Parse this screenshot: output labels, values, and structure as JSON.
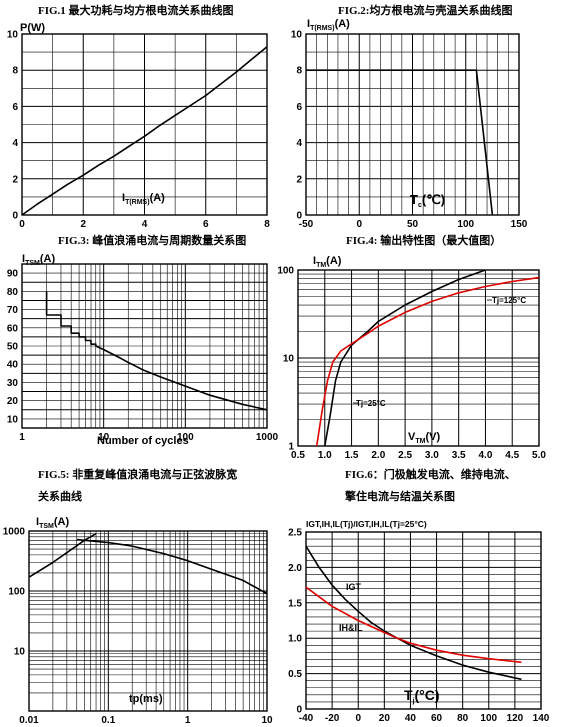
{
  "chart_data": [
    {
      "type": "line",
      "title": "FIG.1  最大功耗与均方根电流关系曲线图",
      "ylabel": "P(W)",
      "xlabel_main": "I",
      "xlabel_sub": "T(RMS)",
      "xlabel_unit": "(A)",
      "xlim": [
        0,
        8
      ],
      "ylim": [
        0,
        10
      ],
      "xticks": [
        "0",
        "2",
        "4",
        "6",
        "8"
      ],
      "yticks": [
        "0",
        "2",
        "4",
        "6",
        "8",
        "10"
      ],
      "grid": true,
      "series": [
        {
          "x": [
            0,
            0.5,
            1,
            1.5,
            2,
            2.5,
            3,
            3.5,
            4,
            4.5,
            5,
            5.5,
            6,
            6.5,
            7,
            7.5,
            8
          ],
          "y": [
            0,
            0.6,
            1.15,
            1.7,
            2.2,
            2.75,
            3.25,
            3.8,
            4.35,
            4.95,
            5.5,
            6.05,
            6.6,
            7.25,
            7.9,
            8.6,
            9.3
          ]
        }
      ]
    },
    {
      "type": "line",
      "title": "FIG.2:均方根电流与壳温关系曲线图",
      "ylabel_main": "I",
      "ylabel_sub": "T(RMS)",
      "ylabel_unit": "(A)",
      "xlabel_main": "T",
      "xlabel_sub": "c",
      "xlabel_unit": "(℃)",
      "xlim": [
        -50,
        150
      ],
      "ylim": [
        0,
        10
      ],
      "xticks": [
        "-50",
        "0",
        "50",
        "100",
        "150"
      ],
      "yticks": [
        "0",
        "2",
        "4",
        "6",
        "8",
        "10"
      ],
      "grid": true,
      "series": [
        {
          "x": [
            -50,
            110,
            125
          ],
          "y": [
            8,
            8,
            0
          ]
        }
      ]
    },
    {
      "type": "line",
      "title": "FIG.3:  峰值浪涌电流与周期数量关系图",
      "ylabel_main": "I",
      "ylabel_sub": "TSM",
      "ylabel_unit": "(A)",
      "xlabel": "Number of cycles",
      "xscale": "log",
      "xlim": [
        1,
        1000
      ],
      "ylim": [
        5,
        95
      ],
      "xticks": [
        "1",
        "10",
        "100",
        "1000"
      ],
      "yticks": [
        "10",
        "20",
        "30",
        "40",
        "50",
        "60",
        "70",
        "80",
        "90"
      ],
      "grid": true,
      "series": [
        {
          "x": [
            2,
            2,
            3,
            3,
            4,
            4,
            5,
            5,
            6,
            6,
            7,
            7,
            8,
            8,
            10,
            15,
            20,
            30,
            50,
            100,
            200,
            500,
            1000
          ],
          "y": [
            80,
            67,
            67,
            61,
            61,
            57,
            57,
            55,
            55,
            53,
            53,
            51,
            51,
            50,
            48,
            44,
            41,
            37,
            33,
            28,
            23,
            18,
            15
          ]
        }
      ]
    },
    {
      "type": "line",
      "title": "FIG.4:  输出特性图（最大值图）",
      "ylabel_main": "I",
      "ylabel_sub": "TM",
      "ylabel_unit": "(A)",
      "xlabel_main": "V",
      "xlabel_sub": "TM",
      "xlabel_unit": "(V)",
      "yscale": "log",
      "xlim": [
        0.5,
        5.0
      ],
      "ylim": [
        1,
        100
      ],
      "xticks": [
        "0.5",
        "1.0",
        "1.5",
        "2.0",
        "2.5",
        "3.0",
        "3.5",
        "4.0",
        "4.5",
        "5.0"
      ],
      "yticks": [
        "1",
        "10",
        "100"
      ],
      "grid": true,
      "series": [
        {
          "name": "Tj=25°C",
          "color": "#000000",
          "x": [
            1.0,
            1.1,
            1.2,
            1.3,
            1.5,
            1.8,
            2.0,
            2.5,
            3.0,
            3.5,
            4.0
          ],
          "y": [
            1,
            2.2,
            5.5,
            9,
            14,
            20,
            26,
            40,
            57,
            78,
            100
          ]
        },
        {
          "name": "Tj=125°C",
          "color": "#e00000",
          "x": [
            0.85,
            0.95,
            1.05,
            1.15,
            1.3,
            1.5,
            1.8,
            2.0,
            2.5,
            3.0,
            3.5,
            4.0,
            4.5,
            5.0
          ],
          "y": [
            1,
            2.5,
            5.5,
            9,
            12,
            14.5,
            19,
            23,
            33,
            44,
            55,
            65,
            74,
            82
          ]
        }
      ],
      "annotations": [
        {
          "text": "Tj=25°C",
          "series": 0
        },
        {
          "text": "Tj=125°C",
          "series": 1
        }
      ]
    },
    {
      "type": "line",
      "title_line1": "FIG.5:  非重复峰值浪涌电流与正弦波脉宽",
      "title_line2": "关系曲线",
      "ylabel_main": "I",
      "ylabel_sub": "TSM",
      "ylabel_unit": "(A)",
      "xlabel": "tp(ms)",
      "xscale": "log",
      "yscale": "log",
      "xlim": [
        0.01,
        10
      ],
      "ylim": [
        1,
        1000
      ],
      "xticks": [
        "0.01",
        "0.1",
        "1",
        "10"
      ],
      "yticks": [
        "10",
        "100",
        "1000"
      ],
      "grid": true,
      "series": [
        {
          "x": [
            0.01,
            0.02,
            0.05,
            0.07
          ],
          "y": [
            170,
            300,
            700,
            900
          ]
        },
        {
          "x": [
            0.04,
            0.1,
            0.2,
            0.5,
            1,
            2,
            5,
            10
          ],
          "y": [
            720,
            640,
            560,
            420,
            320,
            230,
            150,
            90
          ]
        }
      ]
    },
    {
      "type": "line",
      "title_line1": "FIG.6：门极触发电流、维持电流、",
      "title_line2": "擎住电流与结温关系图",
      "ylabel": "IGT,IH,IL(Tj)/IGT,IH,IL(Tj=25°C)",
      "xlabel_main": "T",
      "xlabel_sub": "j",
      "xlabel_unit": "(°C)",
      "xlim": [
        -40,
        140
      ],
      "ylim": [
        0,
        2.5
      ],
      "xticks": [
        "-40",
        "-20",
        "0",
        "20",
        "40",
        "60",
        "80",
        "100",
        "120",
        "140"
      ],
      "yticks": [
        "0",
        "0.5",
        "1.0",
        "1.5",
        "2.0",
        "2.5"
      ],
      "grid": true,
      "series": [
        {
          "name": "IGT",
          "color": "#000000",
          "x": [
            -40,
            -30,
            -20,
            -10,
            0,
            10,
            20,
            30,
            40,
            60,
            80,
            100,
            125
          ],
          "y": [
            2.3,
            2.0,
            1.75,
            1.55,
            1.38,
            1.22,
            1.1,
            1.0,
            0.9,
            0.75,
            0.62,
            0.52,
            0.42
          ]
        },
        {
          "name": "IH&IL",
          "color": "#e00000",
          "x": [
            -40,
            -20,
            0,
            20,
            30,
            40,
            60,
            80,
            100,
            125
          ],
          "y": [
            1.72,
            1.45,
            1.25,
            1.08,
            1.0,
            0.93,
            0.83,
            0.76,
            0.71,
            0.66
          ]
        }
      ],
      "annotations": [
        {
          "text": "IGT",
          "series": 0
        },
        {
          "text": "IH&IL",
          "series": 1
        }
      ]
    }
  ]
}
